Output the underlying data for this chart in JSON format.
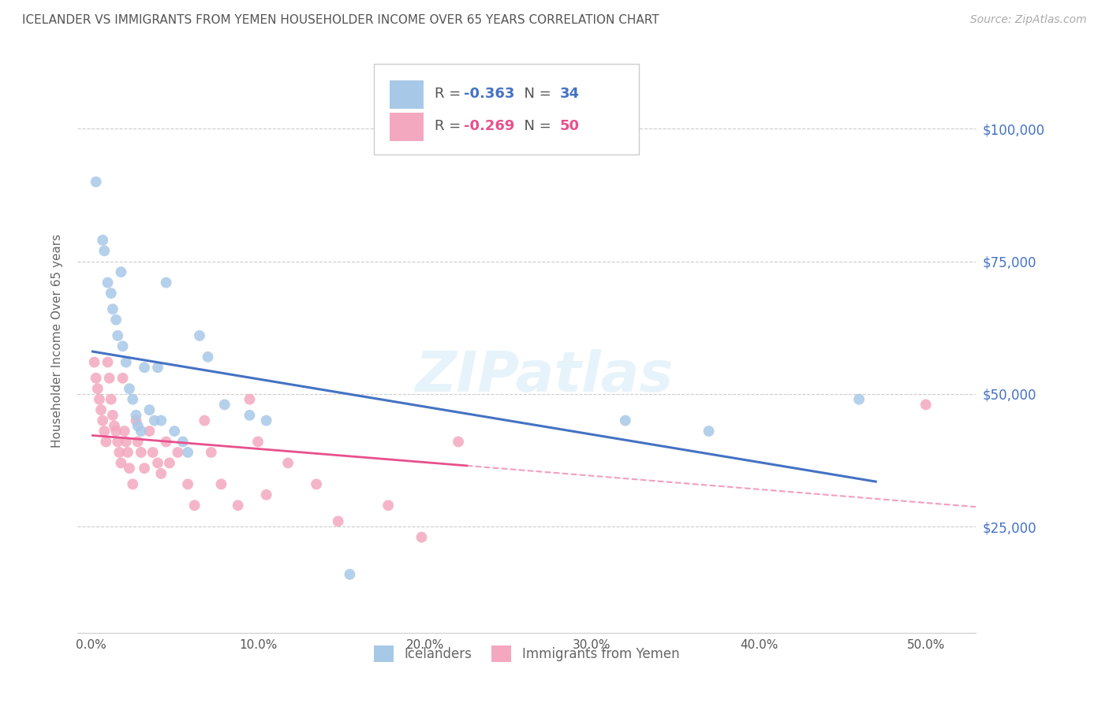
{
  "title": "ICELANDER VS IMMIGRANTS FROM YEMEN HOUSEHOLDER INCOME OVER 65 YEARS CORRELATION CHART",
  "source": "Source: ZipAtlas.com",
  "ylabel": "Householder Income Over 65 years",
  "xlabel_ticks": [
    "0.0%",
    "10.0%",
    "20.0%",
    "30.0%",
    "40.0%",
    "50.0%"
  ],
  "xlabel_vals": [
    0.0,
    0.1,
    0.2,
    0.3,
    0.4,
    0.5
  ],
  "ylabel_ticks": [
    "$100,000",
    "$75,000",
    "$50,000",
    "$25,000"
  ],
  "ylabel_vals": [
    100000,
    75000,
    50000,
    25000
  ],
  "xlim": [
    -0.008,
    0.53
  ],
  "ylim": [
    5000,
    115000
  ],
  "blue_R": "-0.363",
  "blue_N": "34",
  "pink_R": "-0.269",
  "pink_N": "50",
  "blue_color": "#a8c8e8",
  "pink_color": "#f4a8c0",
  "blue_line_color": "#4472C4",
  "pink_line_color": "#E8508C",
  "grid_color": "#cccccc",
  "background_color": "#ffffff",
  "watermark": "ZIPatlas",
  "blue_scatter_x": [
    0.003,
    0.007,
    0.008,
    0.01,
    0.012,
    0.013,
    0.015,
    0.016,
    0.018,
    0.019,
    0.021,
    0.023,
    0.025,
    0.027,
    0.028,
    0.03,
    0.032,
    0.035,
    0.038,
    0.04,
    0.042,
    0.045,
    0.05,
    0.055,
    0.058,
    0.065,
    0.07,
    0.08,
    0.095,
    0.105,
    0.155,
    0.32,
    0.37,
    0.46
  ],
  "blue_scatter_y": [
    90000,
    79000,
    77000,
    71000,
    69000,
    66000,
    64000,
    61000,
    73000,
    59000,
    56000,
    51000,
    49000,
    46000,
    44000,
    43000,
    55000,
    47000,
    45000,
    55000,
    45000,
    71000,
    43000,
    41000,
    39000,
    61000,
    57000,
    48000,
    46000,
    45000,
    16000,
    45000,
    43000,
    49000
  ],
  "pink_scatter_x": [
    0.002,
    0.003,
    0.004,
    0.005,
    0.006,
    0.007,
    0.008,
    0.009,
    0.01,
    0.011,
    0.012,
    0.013,
    0.014,
    0.015,
    0.016,
    0.017,
    0.018,
    0.019,
    0.02,
    0.021,
    0.022,
    0.023,
    0.025,
    0.027,
    0.028,
    0.03,
    0.032,
    0.035,
    0.037,
    0.04,
    0.042,
    0.045,
    0.047,
    0.052,
    0.058,
    0.062,
    0.068,
    0.072,
    0.078,
    0.088,
    0.095,
    0.1,
    0.105,
    0.118,
    0.135,
    0.148,
    0.178,
    0.198,
    0.22,
    0.5
  ],
  "pink_scatter_y": [
    56000,
    53000,
    51000,
    49000,
    47000,
    45000,
    43000,
    41000,
    56000,
    53000,
    49000,
    46000,
    44000,
    43000,
    41000,
    39000,
    37000,
    53000,
    43000,
    41000,
    39000,
    36000,
    33000,
    45000,
    41000,
    39000,
    36000,
    43000,
    39000,
    37000,
    35000,
    41000,
    37000,
    39000,
    33000,
    29000,
    45000,
    39000,
    33000,
    29000,
    49000,
    41000,
    31000,
    37000,
    33000,
    26000,
    29000,
    23000,
    41000,
    48000
  ],
  "blue_line_x_start": 0.001,
  "blue_line_x_end": 0.47,
  "pink_line_x_solid_end": 0.225,
  "pink_line_x_dashed_end": 0.53,
  "legend_items": [
    {
      "label": "Icelanders",
      "color": "#a8c8e8"
    },
    {
      "label": "Immigrants from Yemen",
      "color": "#f4a8c0"
    }
  ]
}
